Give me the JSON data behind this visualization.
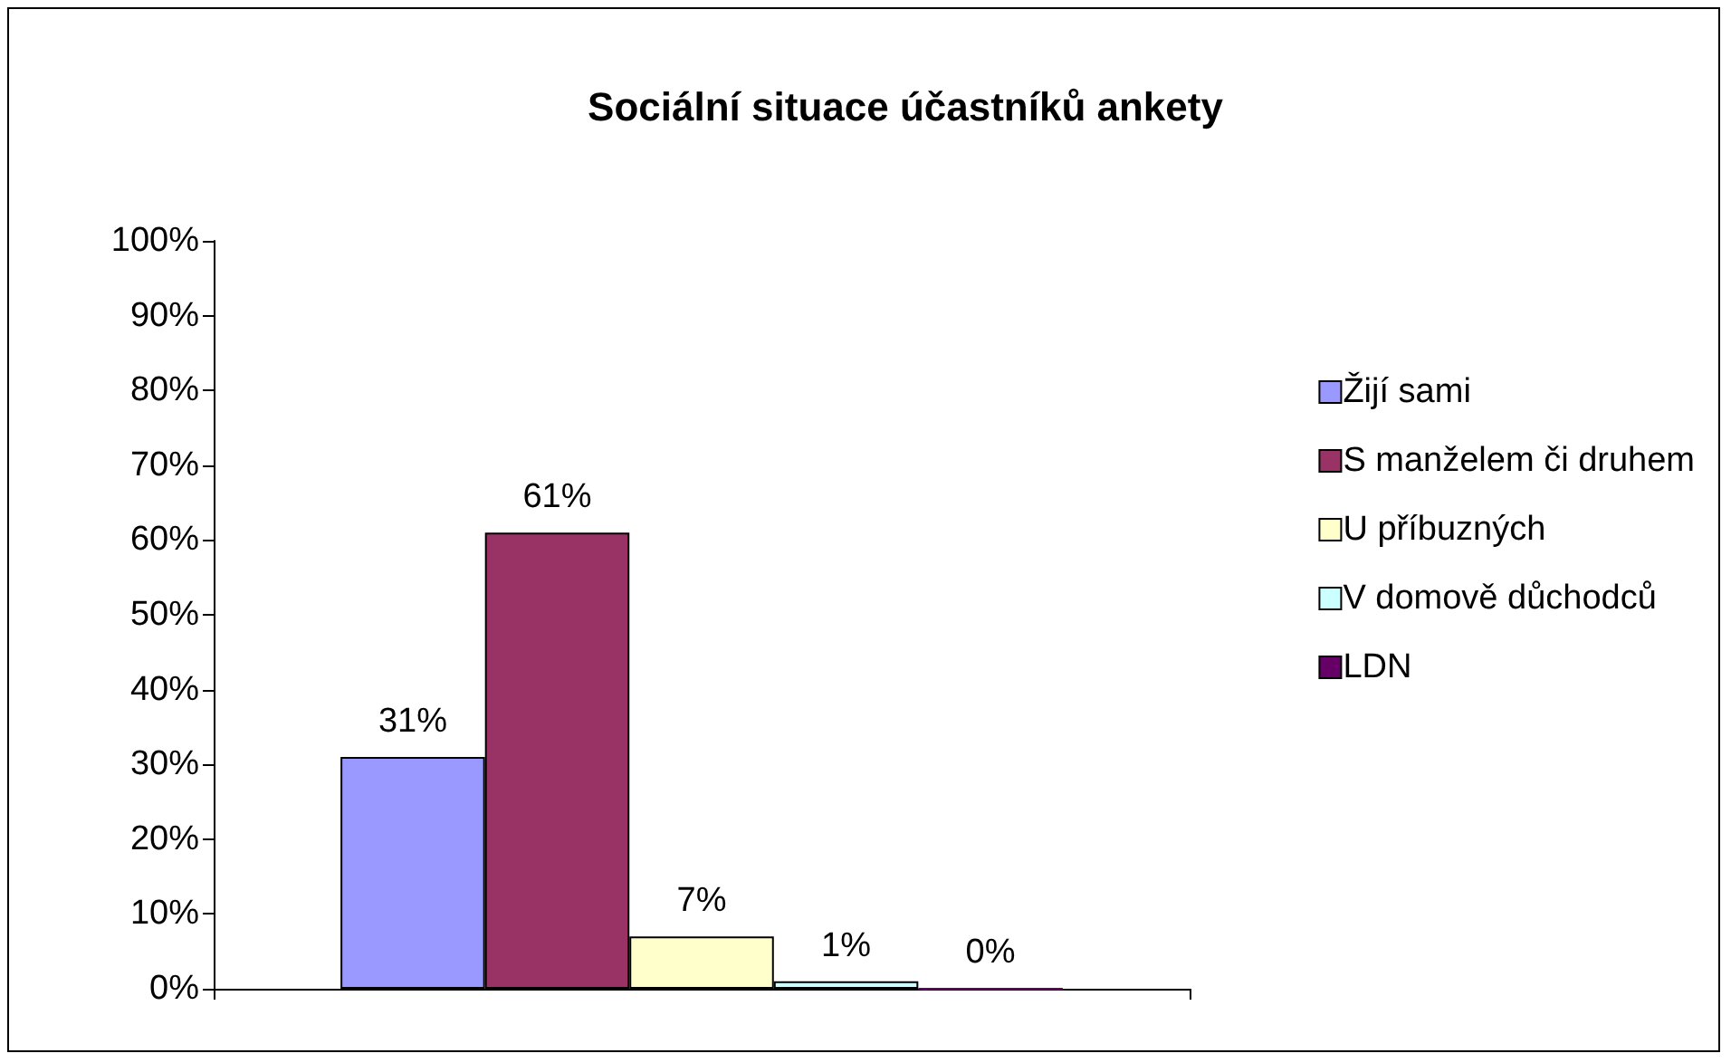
{
  "chart_data": {
    "type": "bar",
    "title": "Sociální situace účastníků ankety",
    "categories": [
      null
    ],
    "series": [
      {
        "name": "Žijí sami",
        "color": "#9999ff",
        "values": [
          31
        ],
        "value_labels": [
          "31%"
        ]
      },
      {
        "name": "S manželem či druhem",
        "color": "#993366",
        "values": [
          61
        ],
        "value_labels": [
          "61%"
        ]
      },
      {
        "name": "U příbuzných",
        "color": "#ffffcc",
        "values": [
          7
        ],
        "value_labels": [
          "7%"
        ]
      },
      {
        "name": "V domově důchodců",
        "color": "#ccffff",
        "values": [
          1
        ],
        "value_labels": [
          "1%"
        ]
      },
      {
        "name": "LDN",
        "color": "#660066",
        "values": [
          0
        ],
        "value_labels": [
          "0%"
        ]
      }
    ],
    "ylim": [
      0,
      100
    ],
    "yticks": [
      {
        "value": 0,
        "label": "0%"
      },
      {
        "value": 10,
        "label": "10%"
      },
      {
        "value": 20,
        "label": "20%"
      },
      {
        "value": 30,
        "label": "30%"
      },
      {
        "value": 40,
        "label": "40%"
      },
      {
        "value": 50,
        "label": "50%"
      },
      {
        "value": 60,
        "label": "60%"
      },
      {
        "value": 70,
        "label": "70%"
      },
      {
        "value": 80,
        "label": "80%"
      },
      {
        "value": 90,
        "label": "90%"
      },
      {
        "value": 100,
        "label": "100%"
      }
    ],
    "grid": false,
    "legend": "right"
  }
}
